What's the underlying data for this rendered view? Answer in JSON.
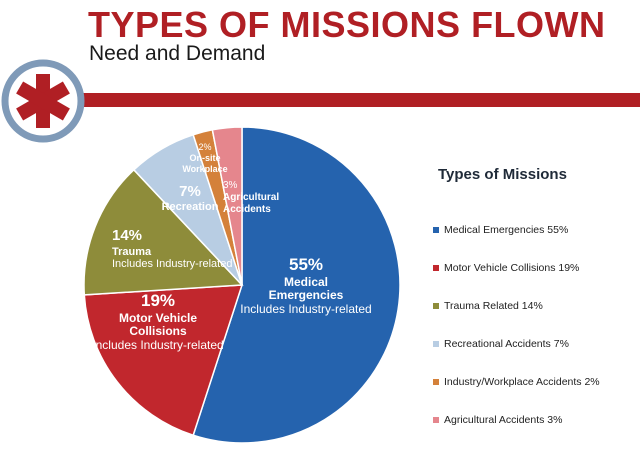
{
  "header": {
    "title": "TYPES OF MISSIONS FLOWN",
    "subtitle": "Need and Demand"
  },
  "logo": {
    "icon": "star-of-life-icon",
    "color": "#b01f24",
    "ring_color": "#7f9ab8"
  },
  "legend": {
    "title": "Types of Missions",
    "items": [
      {
        "label": "Medical Emergencies 55%",
        "color": "#2563ae"
      },
      {
        "label": "Motor Vehicle Collisions 19%",
        "color": "#c1272d"
      },
      {
        "label": "Trauma Related 14%",
        "color": "#8e8c3a"
      },
      {
        "label": "Recreational Accidents 7%",
        "color": "#b8cde3"
      },
      {
        "label": "Industry/Workplace Accidents 2%",
        "color": "#d4813a"
      },
      {
        "label": "Agricultural Accidents 3%",
        "color": "#e5868d"
      }
    ]
  },
  "chart_data": {
    "type": "pie",
    "legend_position": "right",
    "slices": [
      {
        "value": 55,
        "color": "#2563ae",
        "labels": [
          "55%",
          "Medical",
          "Emergencies",
          "Includes Industry-related"
        ]
      },
      {
        "value": 19,
        "color": "#c1272d",
        "labels": [
          "19%",
          "Motor Vehicle",
          "Collisions",
          "Includes Industry-related"
        ]
      },
      {
        "value": 14,
        "color": "#8e8c3a",
        "labels": [
          "14%",
          "Trauma",
          "Includes Industry-related"
        ]
      },
      {
        "value": 7,
        "color": "#b8cde3",
        "labels": [
          "7%",
          "Recreation"
        ]
      },
      {
        "value": 2,
        "color": "#d4813a",
        "labels": [
          "2%",
          "On-site",
          "Workplace"
        ]
      },
      {
        "value": 3,
        "color": "#e5868d",
        "labels": [
          "3%",
          "Agricultural",
          "Accidents"
        ]
      }
    ]
  }
}
